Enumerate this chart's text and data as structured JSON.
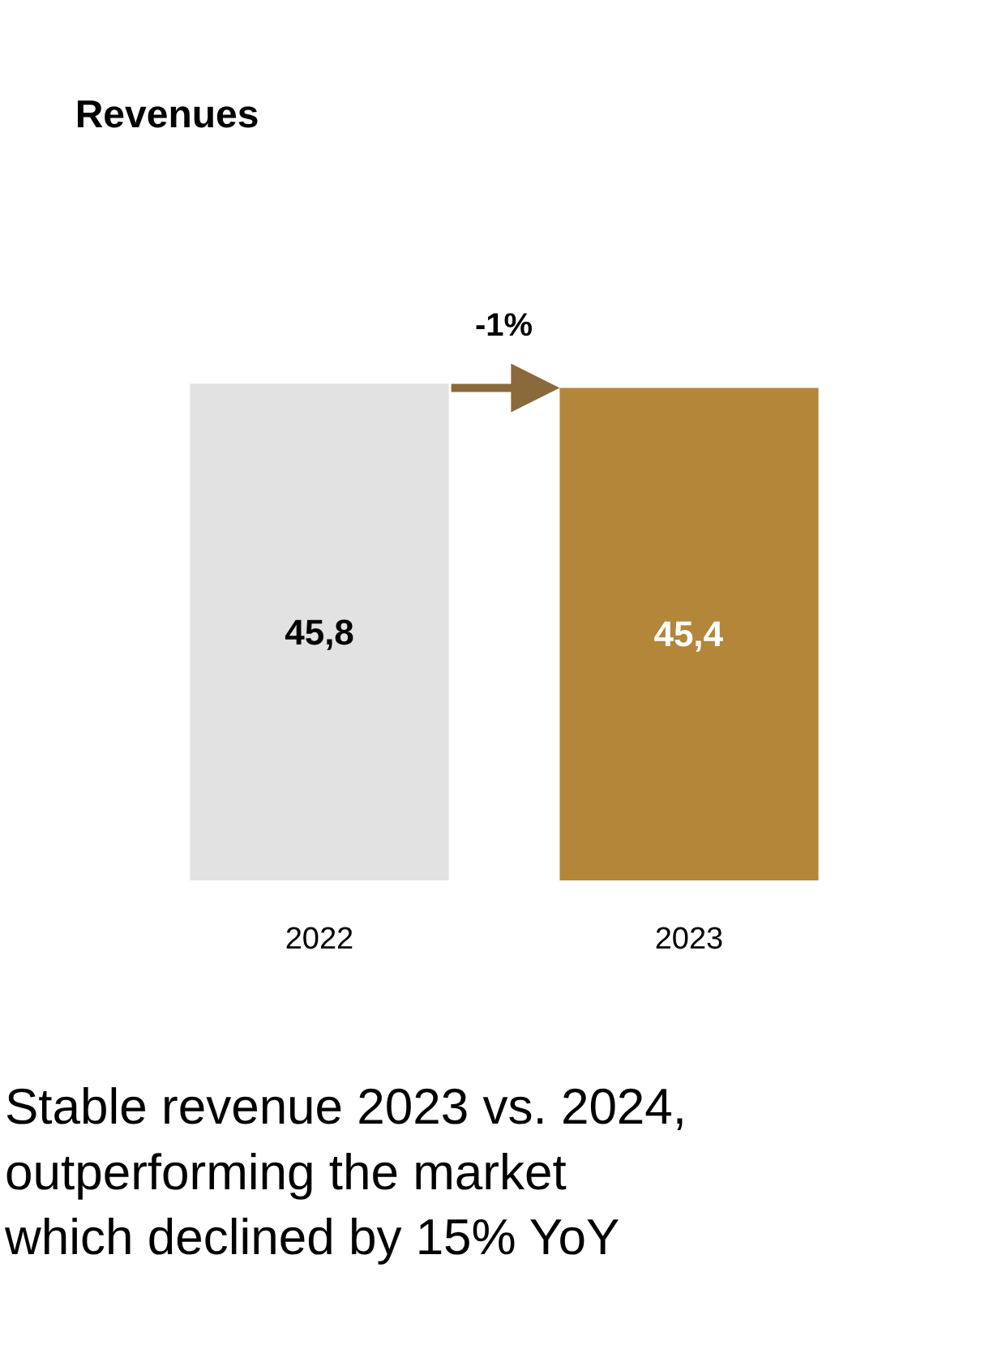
{
  "chart_data": {
    "type": "bar",
    "title": "Revenues",
    "categories": [
      "2022",
      "2023"
    ],
    "values": [
      45.8,
      45.4
    ],
    "colors": [
      "#e2e2e2",
      "#b4863a"
    ],
    "value_labels": [
      "45,8",
      "45,4"
    ],
    "annotations": [
      "-1%",
      "Stable revenue 2023 vs. 2024,\noutperforming the market\nwhich declined by 15% YoY"
    ],
    "legend": false
  }
}
